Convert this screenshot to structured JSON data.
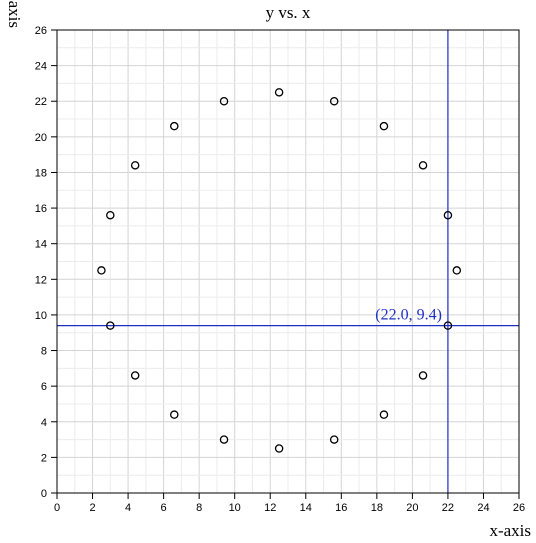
{
  "chart_data": {
    "type": "scatter",
    "title": "y vs. x",
    "xlabel": "x-axis",
    "ylabel": "y-axis",
    "xlim": [
      0,
      26
    ],
    "ylim": [
      0,
      26
    ],
    "xticks": [
      0,
      2,
      4,
      6,
      8,
      10,
      12,
      14,
      16,
      18,
      20,
      22,
      24,
      26
    ],
    "yticks": [
      0,
      2,
      4,
      6,
      8,
      10,
      12,
      14,
      16,
      18,
      20,
      22,
      24,
      26
    ],
    "grid": true,
    "marker": "open-circle",
    "marker_color": "#000000",
    "points": [
      {
        "x": 12.5,
        "y": 22.5
      },
      {
        "x": 15.6,
        "y": 22.0
      },
      {
        "x": 18.4,
        "y": 20.6
      },
      {
        "x": 20.6,
        "y": 18.4
      },
      {
        "x": 22.0,
        "y": 15.6
      },
      {
        "x": 22.5,
        "y": 12.5
      },
      {
        "x": 22.0,
        "y": 9.4
      },
      {
        "x": 20.6,
        "y": 6.6
      },
      {
        "x": 18.4,
        "y": 4.4
      },
      {
        "x": 15.6,
        "y": 3.0
      },
      {
        "x": 12.5,
        "y": 2.5
      },
      {
        "x": 9.4,
        "y": 3.0
      },
      {
        "x": 6.6,
        "y": 4.4
      },
      {
        "x": 4.4,
        "y": 6.6
      },
      {
        "x": 3.0,
        "y": 9.4
      },
      {
        "x": 2.5,
        "y": 12.5
      },
      {
        "x": 3.0,
        "y": 15.6
      },
      {
        "x": 4.4,
        "y": 18.4
      },
      {
        "x": 6.6,
        "y": 20.6
      },
      {
        "x": 9.4,
        "y": 22.0
      }
    ],
    "crosshair": {
      "x": 22.0,
      "y": 9.4,
      "label": "(22.0, 9.4)",
      "color": "#1f2fc4"
    }
  }
}
